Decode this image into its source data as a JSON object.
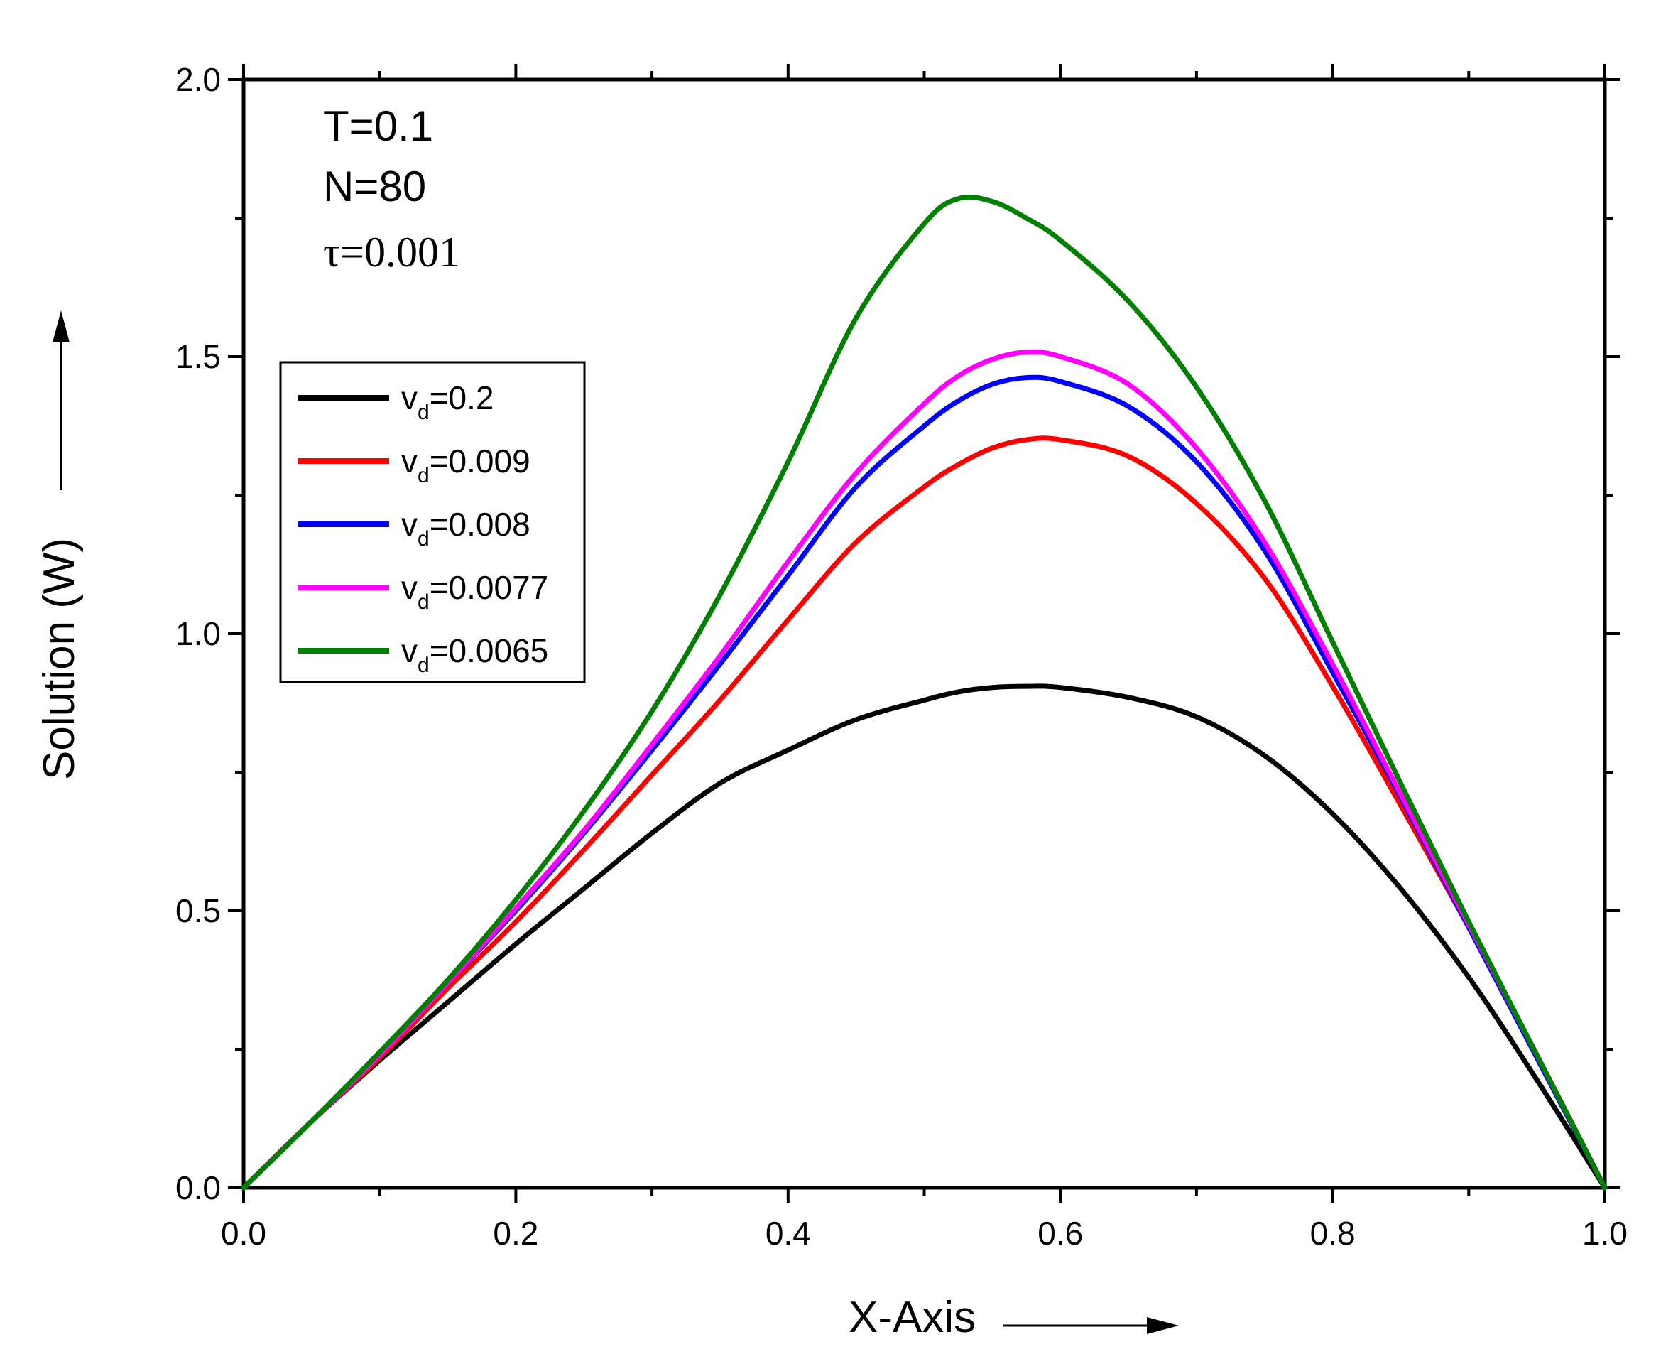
{
  "chart_data": {
    "type": "line",
    "title": "",
    "xlabel": "X-Axis",
    "ylabel": "Solution (W)",
    "xlim": [
      0.0,
      1.0
    ],
    "ylim": [
      0.0,
      2.0
    ],
    "x_major_ticks": [
      0.0,
      0.2,
      0.4,
      0.6,
      0.8,
      1.0
    ],
    "x_tick_labels": [
      "0.0",
      "0.2",
      "0.4",
      "0.6",
      "0.8",
      "1.0"
    ],
    "x_minor_ticks": [
      0.1,
      0.3,
      0.5,
      0.7,
      0.9
    ],
    "y_major_ticks": [
      0.0,
      0.5,
      1.0,
      1.5,
      2.0
    ],
    "y_tick_labels": [
      "0.0",
      "0.5",
      "1.0",
      "1.5",
      "2.0"
    ],
    "y_minor_ticks": [
      0.25,
      0.75,
      1.25,
      1.75
    ],
    "grid": false,
    "legend_position": "upper-left",
    "annotations": [
      {
        "text": "T=0.1",
        "style": "sans"
      },
      {
        "text": "N=80",
        "style": "sans"
      },
      {
        "text": "τ=0.001",
        "style": "serif"
      }
    ],
    "x": [
      0.0,
      0.05,
      0.1,
      0.15,
      0.2,
      0.25,
      0.3,
      0.35,
      0.4,
      0.45,
      0.5,
      0.525,
      0.55,
      0.575,
      0.6,
      0.65,
      0.7,
      0.75,
      0.8,
      0.85,
      0.9,
      0.95,
      1.0
    ],
    "series": [
      {
        "name": "v_d=0.2",
        "label_main": "v",
        "label_sub": "d",
        "label_rest": "=0.2",
        "color": "#000000",
        "values": [
          0.0,
          0.12,
          0.23,
          0.335,
          0.44,
          0.54,
          0.64,
          0.73,
          0.79,
          0.845,
          0.88,
          0.895,
          0.903,
          0.905,
          0.903,
          0.885,
          0.85,
          0.78,
          0.675,
          0.54,
          0.38,
          0.195,
          0.0
        ]
      },
      {
        "name": "v_d=0.009",
        "label_main": "v",
        "label_sub": "d",
        "label_rest": "=0.009",
        "color": "#ff0000",
        "values": [
          0.0,
          0.12,
          0.235,
          0.36,
          0.48,
          0.61,
          0.745,
          0.88,
          1.025,
          1.165,
          1.265,
          1.305,
          1.335,
          1.35,
          1.35,
          1.32,
          1.235,
          1.1,
          0.905,
          0.69,
          0.47,
          0.24,
          0.0
        ]
      },
      {
        "name": "v_d=0.008",
        "label_main": "v",
        "label_sub": "d",
        "label_rest": "=0.008",
        "color": "#0000ff",
        "values": [
          0.0,
          0.12,
          0.24,
          0.37,
          0.5,
          0.64,
          0.79,
          0.945,
          1.105,
          1.265,
          1.375,
          1.42,
          1.45,
          1.462,
          1.455,
          1.41,
          1.31,
          1.15,
          0.93,
          0.705,
          0.47,
          0.235,
          0.0
        ]
      },
      {
        "name": "v_d=0.0077",
        "label_main": "v",
        "label_sub": "d",
        "label_rest": "=0.0077",
        "color": "#ff00ff",
        "values": [
          0.0,
          0.12,
          0.24,
          0.37,
          0.505,
          0.645,
          0.8,
          0.96,
          1.13,
          1.29,
          1.415,
          1.465,
          1.495,
          1.508,
          1.5,
          1.45,
          1.335,
          1.165,
          0.945,
          0.71,
          0.475,
          0.24,
          0.0
        ]
      },
      {
        "name": "v_d=0.0065",
        "label_main": "v",
        "label_sub": "d",
        "label_rest": "=0.0065",
        "color": "#007f00",
        "values": [
          0.0,
          0.12,
          0.245,
          0.375,
          0.52,
          0.68,
          0.86,
          1.07,
          1.31,
          1.57,
          1.74,
          1.785,
          1.78,
          1.75,
          1.71,
          1.6,
          1.445,
          1.24,
          0.985,
          0.73,
          0.48,
          0.24,
          0.0
        ]
      }
    ]
  }
}
